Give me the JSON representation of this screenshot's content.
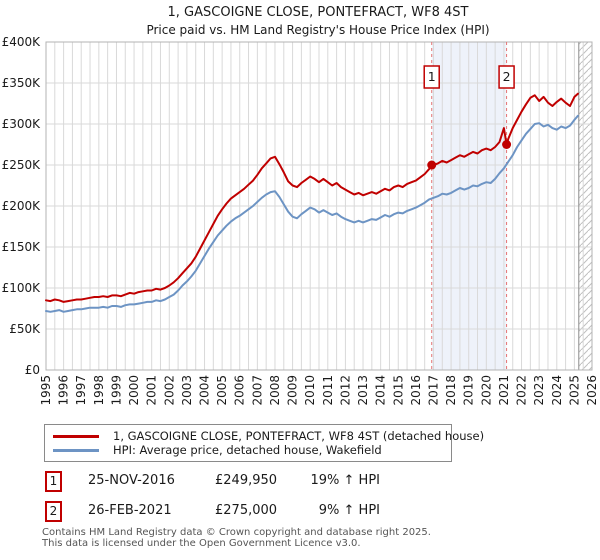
{
  "title": "1, GASCOIGNE CLOSE, PONTEFRACT, WF8 4ST",
  "subtitle": "Price paid vs. HM Land Registry's House Price Index (HPI)",
  "chart_data": {
    "type": "line",
    "x_axis": {
      "min": 1995,
      "max": 2026,
      "tick_labels": [
        "1995",
        "1996",
        "1997",
        "1998",
        "1999",
        "2000",
        "2001",
        "2002",
        "2003",
        "2004",
        "2005",
        "2006",
        "2007",
        "2008",
        "2009",
        "2010",
        "2011",
        "2012",
        "2013",
        "2014",
        "2015",
        "2016",
        "2017",
        "2018",
        "2019",
        "2020",
        "2021",
        "2022",
        "2023",
        "2024",
        "2025",
        "2026"
      ]
    },
    "y_axis": {
      "min": 0,
      "max": 400000,
      "tick_step": 50000,
      "tick_labels": [
        "£0",
        "£50K",
        "£100K",
        "£150K",
        "£200K",
        "£250K",
        "£300K",
        "£350K",
        "£400K"
      ]
    },
    "grid": true,
    "colors": {
      "grid": "#d9d9d9",
      "border": "#b3b3b3",
      "shade": "#eef2fa",
      "dashed": "#e57373",
      "hatch": "#bfbfbf",
      "hatch_edge": "#8c8c8c",
      "marker_red": "#c00000"
    },
    "shaded_span": [
      2016.9,
      2021.15
    ],
    "hatch_span": [
      2025.25,
      2026
    ],
    "markers": [
      {
        "n": "1",
        "x": 2016.9,
        "y": 249950
      },
      {
        "n": "2",
        "x": 2021.15,
        "y": 275000
      }
    ],
    "series": [
      {
        "name": "price-paid",
        "label": "1, GASCOIGNE CLOSE, PONTEFRACT, WF8 4ST (detached house)",
        "color": "#c00000",
        "points": [
          [
            1995,
            85000
          ],
          [
            1995.25,
            84000
          ],
          [
            1995.5,
            86000
          ],
          [
            1995.75,
            85000
          ],
          [
            1996,
            83000
          ],
          [
            1996.25,
            84000
          ],
          [
            1996.5,
            85000
          ],
          [
            1996.75,
            86000
          ],
          [
            1997,
            86000
          ],
          [
            1997.25,
            87000
          ],
          [
            1997.5,
            88000
          ],
          [
            1997.75,
            89000
          ],
          [
            1998,
            89000
          ],
          [
            1998.25,
            90000
          ],
          [
            1998.5,
            89000
          ],
          [
            1998.75,
            91000
          ],
          [
            1999,
            91000
          ],
          [
            1999.25,
            90000
          ],
          [
            1999.5,
            92000
          ],
          [
            1999.75,
            94000
          ],
          [
            2000,
            93000
          ],
          [
            2000.25,
            95000
          ],
          [
            2000.5,
            96000
          ],
          [
            2000.75,
            97000
          ],
          [
            2001,
            97000
          ],
          [
            2001.25,
            99000
          ],
          [
            2001.5,
            98000
          ],
          [
            2001.75,
            100000
          ],
          [
            2002,
            103000
          ],
          [
            2002.25,
            107000
          ],
          [
            2002.5,
            112000
          ],
          [
            2002.75,
            118000
          ],
          [
            2003,
            124000
          ],
          [
            2003.25,
            130000
          ],
          [
            2003.5,
            138000
          ],
          [
            2003.75,
            148000
          ],
          [
            2004,
            158000
          ],
          [
            2004.25,
            168000
          ],
          [
            2004.5,
            178000
          ],
          [
            2004.75,
            188000
          ],
          [
            2005,
            196000
          ],
          [
            2005.25,
            203000
          ],
          [
            2005.5,
            209000
          ],
          [
            2005.75,
            213000
          ],
          [
            2006,
            217000
          ],
          [
            2006.25,
            221000
          ],
          [
            2006.5,
            226000
          ],
          [
            2006.75,
            231000
          ],
          [
            2007,
            238000
          ],
          [
            2007.25,
            246000
          ],
          [
            2007.5,
            252000
          ],
          [
            2007.75,
            258000
          ],
          [
            2008,
            260000
          ],
          [
            2008.25,
            251000
          ],
          [
            2008.5,
            241000
          ],
          [
            2008.75,
            230000
          ],
          [
            2009,
            225000
          ],
          [
            2009.25,
            223000
          ],
          [
            2009.5,
            228000
          ],
          [
            2009.75,
            232000
          ],
          [
            2010,
            236000
          ],
          [
            2010.25,
            233000
          ],
          [
            2010.5,
            229000
          ],
          [
            2010.75,
            233000
          ],
          [
            2011,
            229000
          ],
          [
            2011.25,
            225000
          ],
          [
            2011.5,
            228000
          ],
          [
            2011.75,
            223000
          ],
          [
            2012,
            220000
          ],
          [
            2012.25,
            217000
          ],
          [
            2012.5,
            214000
          ],
          [
            2012.75,
            216000
          ],
          [
            2013,
            213000
          ],
          [
            2013.25,
            215000
          ],
          [
            2013.5,
            217000
          ],
          [
            2013.75,
            215000
          ],
          [
            2014,
            218000
          ],
          [
            2014.25,
            221000
          ],
          [
            2014.5,
            219000
          ],
          [
            2014.75,
            223000
          ],
          [
            2015,
            225000
          ],
          [
            2015.25,
            223000
          ],
          [
            2015.5,
            227000
          ],
          [
            2015.75,
            229000
          ],
          [
            2016,
            231000
          ],
          [
            2016.25,
            235000
          ],
          [
            2016.5,
            239000
          ],
          [
            2016.75,
            245000
          ],
          [
            2016.9,
            249950
          ],
          [
            2017,
            250000
          ],
          [
            2017.25,
            252000
          ],
          [
            2017.5,
            255000
          ],
          [
            2017.75,
            253000
          ],
          [
            2018,
            256000
          ],
          [
            2018.25,
            259000
          ],
          [
            2018.5,
            262000
          ],
          [
            2018.75,
            260000
          ],
          [
            2019,
            263000
          ],
          [
            2019.25,
            266000
          ],
          [
            2019.5,
            264000
          ],
          [
            2019.75,
            268000
          ],
          [
            2020,
            270000
          ],
          [
            2020.25,
            268000
          ],
          [
            2020.5,
            272000
          ],
          [
            2020.75,
            278000
          ],
          [
            2021,
            295000
          ],
          [
            2021.15,
            275000
          ],
          [
            2021.25,
            282000
          ],
          [
            2021.5,
            295000
          ],
          [
            2021.75,
            305000
          ],
          [
            2022,
            315000
          ],
          [
            2022.25,
            324000
          ],
          [
            2022.5,
            332000
          ],
          [
            2022.75,
            335000
          ],
          [
            2023,
            328000
          ],
          [
            2023.25,
            333000
          ],
          [
            2023.5,
            326000
          ],
          [
            2023.75,
            322000
          ],
          [
            2024,
            327000
          ],
          [
            2024.25,
            331000
          ],
          [
            2024.5,
            326000
          ],
          [
            2024.75,
            322000
          ],
          [
            2025,
            333000
          ],
          [
            2025.2,
            337000
          ]
        ]
      },
      {
        "name": "hpi",
        "label": "HPI: Average price, detached house, Wakefield",
        "color": "#6d94c4",
        "points": [
          [
            1995,
            72000
          ],
          [
            1995.25,
            71000
          ],
          [
            1995.5,
            72000
          ],
          [
            1995.75,
            73000
          ],
          [
            1996,
            71000
          ],
          [
            1996.25,
            72000
          ],
          [
            1996.5,
            73000
          ],
          [
            1996.75,
            74000
          ],
          [
            1997,
            74000
          ],
          [
            1997.25,
            75000
          ],
          [
            1997.5,
            76000
          ],
          [
            1997.75,
            76000
          ],
          [
            1998,
            76000
          ],
          [
            1998.25,
            77000
          ],
          [
            1998.5,
            76000
          ],
          [
            1998.75,
            78000
          ],
          [
            1999,
            78000
          ],
          [
            1999.25,
            77000
          ],
          [
            1999.5,
            79000
          ],
          [
            1999.75,
            80000
          ],
          [
            2000,
            80000
          ],
          [
            2000.25,
            81000
          ],
          [
            2000.5,
            82000
          ],
          [
            2000.75,
            83000
          ],
          [
            2001,
            83000
          ],
          [
            2001.25,
            85000
          ],
          [
            2001.5,
            84000
          ],
          [
            2001.75,
            86000
          ],
          [
            2002,
            89000
          ],
          [
            2002.25,
            92000
          ],
          [
            2002.5,
            97000
          ],
          [
            2002.75,
            103000
          ],
          [
            2003,
            108000
          ],
          [
            2003.25,
            114000
          ],
          [
            2003.5,
            121000
          ],
          [
            2003.75,
            130000
          ],
          [
            2004,
            139000
          ],
          [
            2004.25,
            148000
          ],
          [
            2004.5,
            156000
          ],
          [
            2004.75,
            164000
          ],
          [
            2005,
            170000
          ],
          [
            2005.25,
            176000
          ],
          [
            2005.5,
            181000
          ],
          [
            2005.75,
            185000
          ],
          [
            2006,
            188000
          ],
          [
            2006.25,
            192000
          ],
          [
            2006.5,
            196000
          ],
          [
            2006.75,
            200000
          ],
          [
            2007,
            205000
          ],
          [
            2007.25,
            210000
          ],
          [
            2007.5,
            214000
          ],
          [
            2007.75,
            217000
          ],
          [
            2008,
            218000
          ],
          [
            2008.25,
            211000
          ],
          [
            2008.5,
            202000
          ],
          [
            2008.75,
            193000
          ],
          [
            2009,
            187000
          ],
          [
            2009.25,
            185000
          ],
          [
            2009.5,
            190000
          ],
          [
            2009.75,
            194000
          ],
          [
            2010,
            198000
          ],
          [
            2010.25,
            196000
          ],
          [
            2010.5,
            192000
          ],
          [
            2010.75,
            195000
          ],
          [
            2011,
            192000
          ],
          [
            2011.25,
            189000
          ],
          [
            2011.5,
            191000
          ],
          [
            2011.75,
            187000
          ],
          [
            2012,
            184000
          ],
          [
            2012.25,
            182000
          ],
          [
            2012.5,
            180000
          ],
          [
            2012.75,
            182000
          ],
          [
            2013,
            180000
          ],
          [
            2013.25,
            182000
          ],
          [
            2013.5,
            184000
          ],
          [
            2013.75,
            183000
          ],
          [
            2014,
            186000
          ],
          [
            2014.25,
            189000
          ],
          [
            2014.5,
            187000
          ],
          [
            2014.75,
            190000
          ],
          [
            2015,
            192000
          ],
          [
            2015.25,
            191000
          ],
          [
            2015.5,
            194000
          ],
          [
            2015.75,
            196000
          ],
          [
            2016,
            198000
          ],
          [
            2016.25,
            201000
          ],
          [
            2016.5,
            204000
          ],
          [
            2016.75,
            208000
          ],
          [
            2017,
            210000
          ],
          [
            2017.25,
            212000
          ],
          [
            2017.5,
            215000
          ],
          [
            2017.75,
            214000
          ],
          [
            2018,
            216000
          ],
          [
            2018.25,
            219000
          ],
          [
            2018.5,
            222000
          ],
          [
            2018.75,
            220000
          ],
          [
            2019,
            222000
          ],
          [
            2019.25,
            225000
          ],
          [
            2019.5,
            224000
          ],
          [
            2019.75,
            227000
          ],
          [
            2020,
            229000
          ],
          [
            2020.25,
            228000
          ],
          [
            2020.5,
            233000
          ],
          [
            2020.75,
            240000
          ],
          [
            2021,
            246000
          ],
          [
            2021.25,
            254000
          ],
          [
            2021.5,
            262000
          ],
          [
            2021.75,
            272000
          ],
          [
            2022,
            280000
          ],
          [
            2022.25,
            288000
          ],
          [
            2022.5,
            294000
          ],
          [
            2022.75,
            300000
          ],
          [
            2023,
            301000
          ],
          [
            2023.25,
            297000
          ],
          [
            2023.5,
            299000
          ],
          [
            2023.75,
            295000
          ],
          [
            2024,
            293000
          ],
          [
            2024.25,
            297000
          ],
          [
            2024.5,
            295000
          ],
          [
            2024.75,
            298000
          ],
          [
            2025,
            305000
          ],
          [
            2025.2,
            310000
          ]
        ]
      }
    ]
  },
  "transactions": [
    {
      "num": "1",
      "date": "25-NOV-2016",
      "price": "£249,950",
      "pct": "19%",
      "hpi_label": "↑ HPI"
    },
    {
      "num": "2",
      "date": "26-FEB-2021",
      "price": "£275,000",
      "pct": "9%",
      "hpi_label": "↑ HPI"
    }
  ],
  "footer": {
    "line1": "Contains HM Land Registry data © Crown copyright and database right 2025.",
    "line2": "This data is licensed under the Open Government Licence v3.0."
  }
}
